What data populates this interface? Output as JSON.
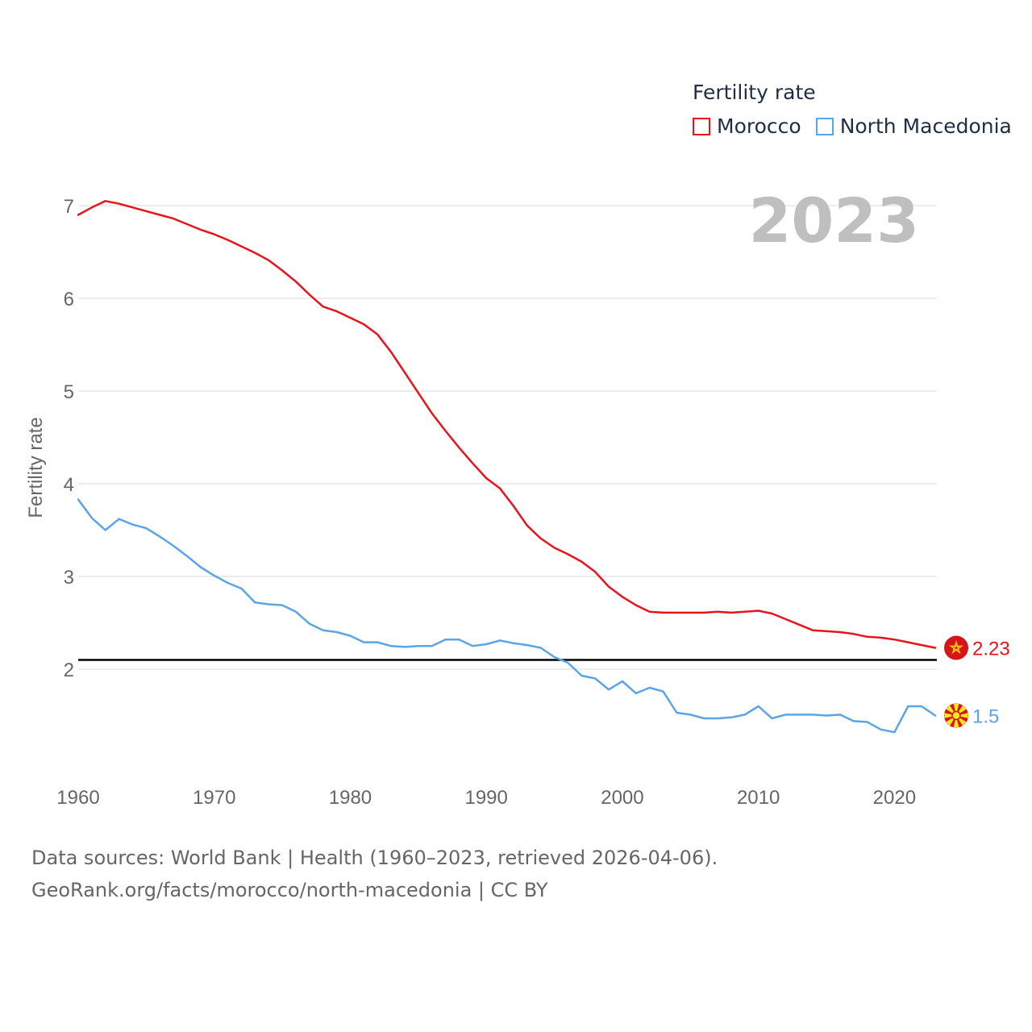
{
  "legend": {
    "title": "Fertility rate",
    "items": [
      {
        "label": "Morocco",
        "color": "#e8141c"
      },
      {
        "label": "North Macedonia",
        "color": "#5ba4e6"
      }
    ]
  },
  "footer": {
    "line1": "Data sources: World Bank | Health (1960–2023, retrieved 2026-04-06).",
    "line2": "GeoRank.org/facts/morocco/north-macedonia | CC BY"
  },
  "chart_data": {
    "type": "line",
    "year_label": "2023",
    "ylabel": "Fertility rate",
    "xlabel": "",
    "xlim": [
      1960,
      2023
    ],
    "ylim": [
      1,
      7.5
    ],
    "yticks": [
      2,
      3,
      4,
      5,
      6,
      7
    ],
    "xticks": [
      1960,
      1970,
      1980,
      1990,
      2000,
      2010,
      2020
    ],
    "reference_line": 2.1,
    "x": [
      1960,
      1961,
      1962,
      1963,
      1964,
      1965,
      1966,
      1967,
      1968,
      1969,
      1970,
      1971,
      1972,
      1973,
      1974,
      1975,
      1976,
      1977,
      1978,
      1979,
      1980,
      1981,
      1982,
      1983,
      1984,
      1985,
      1986,
      1987,
      1988,
      1989,
      1990,
      1991,
      1992,
      1993,
      1994,
      1995,
      1996,
      1997,
      1998,
      1999,
      2000,
      2001,
      2002,
      2003,
      2004,
      2005,
      2006,
      2007,
      2008,
      2009,
      2010,
      2011,
      2012,
      2013,
      2014,
      2015,
      2016,
      2017,
      2018,
      2019,
      2020,
      2021,
      2022,
      2023
    ],
    "series": [
      {
        "name": "Morocco",
        "color": "#e8141c",
        "end_label": "2.23",
        "values": [
          6.9,
          6.98,
          7.05,
          7.02,
          6.98,
          6.94,
          6.9,
          6.86,
          6.8,
          6.74,
          6.69,
          6.63,
          6.56,
          6.49,
          6.41,
          6.3,
          6.18,
          6.04,
          5.91,
          5.86,
          5.79,
          5.72,
          5.61,
          5.42,
          5.2,
          4.98,
          4.76,
          4.57,
          4.39,
          4.22,
          4.06,
          3.95,
          3.76,
          3.55,
          3.41,
          3.31,
          3.24,
          3.16,
          3.05,
          2.89,
          2.78,
          2.69,
          2.62,
          2.61,
          2.61,
          2.61,
          2.61,
          2.62,
          2.61,
          2.62,
          2.63,
          2.6,
          2.54,
          2.48,
          2.42,
          2.41,
          2.4,
          2.38,
          2.35,
          2.34,
          2.32,
          2.29,
          2.26,
          2.23
        ]
      },
      {
        "name": "North Macedonia",
        "color": "#5ba4e6",
        "end_label": "1.5",
        "values": [
          3.83,
          3.63,
          3.5,
          3.62,
          3.56,
          3.52,
          3.43,
          3.33,
          3.22,
          3.1,
          3.01,
          2.93,
          2.87,
          2.72,
          2.7,
          2.69,
          2.62,
          2.49,
          2.42,
          2.4,
          2.36,
          2.29,
          2.29,
          2.25,
          2.24,
          2.25,
          2.25,
          2.32,
          2.32,
          2.25,
          2.27,
          2.31,
          2.28,
          2.26,
          2.23,
          2.13,
          2.07,
          1.93,
          1.9,
          1.78,
          1.87,
          1.74,
          1.8,
          1.76,
          1.53,
          1.51,
          1.47,
          1.47,
          1.48,
          1.51,
          1.6,
          1.47,
          1.51,
          1.51,
          1.51,
          1.5,
          1.51,
          1.44,
          1.43,
          1.35,
          1.32,
          1.6,
          1.6,
          1.5
        ]
      }
    ]
  }
}
